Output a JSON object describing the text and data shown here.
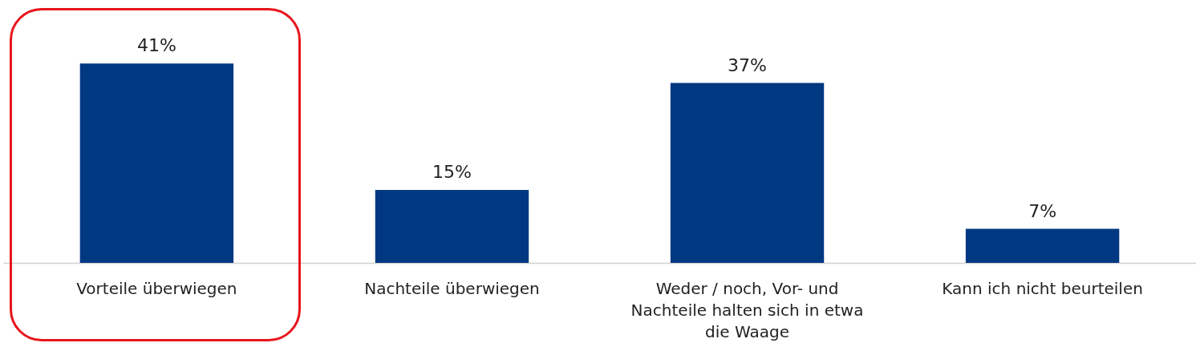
{
  "chart_data": {
    "type": "bar",
    "categories": [
      "Vorteile überwiegen",
      "Nachteile überwiegen",
      "Weder / noch, Vor- und Nachteile halten sich in etwa die Waage",
      "Kann ich nicht beurteilen"
    ],
    "values": [
      41,
      15,
      37,
      7
    ],
    "value_labels": [
      "41%",
      "15%",
      "37%",
      "7%"
    ],
    "color": "#003882"
  }
}
